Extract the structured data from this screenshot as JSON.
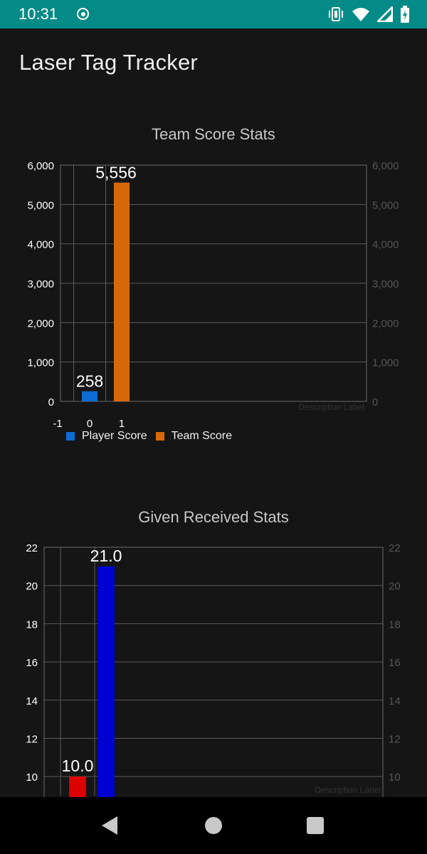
{
  "status_bar": {
    "time": "10:31",
    "icons": [
      "record-icon",
      "vibrate-icon",
      "wifi-icon",
      "signal-icon",
      "battery-charging-icon"
    ]
  },
  "app": {
    "title": "Laser Tag Tracker"
  },
  "nav_bar": {
    "buttons": [
      "back-button",
      "home-button",
      "recents-button"
    ]
  },
  "chart_data": [
    {
      "type": "bar",
      "title": "Team Score Stats",
      "description_label": "Description Label",
      "x_ticks": [
        "-1",
        "0",
        "1"
      ],
      "series": [
        {
          "name": "Player Score",
          "x": 0,
          "value": 258,
          "label": "258",
          "color": "#0c6cd4"
        },
        {
          "name": "Team Score",
          "x": 1,
          "value": 5556,
          "label": "5,556",
          "color": "#d8690a"
        }
      ],
      "ylim": [
        0,
        6000
      ],
      "y_ticks": [
        "0",
        "1,000",
        "2,000",
        "3,000",
        "4,000",
        "5,000",
        "6,000"
      ],
      "grid": true,
      "legend": "bottom-left"
    },
    {
      "type": "bar",
      "title": "Given Received Stats",
      "description_label": "Description Label",
      "series": [
        {
          "x": 0,
          "value": 10.0,
          "label": "10.0",
          "color": "#dd0000"
        },
        {
          "x": 1,
          "value": 21.0,
          "label": "21.0",
          "color": "#0000d0"
        }
      ],
      "ylim": [
        9,
        22
      ],
      "y_ticks": [
        "10",
        "12",
        "14",
        "16",
        "18",
        "20",
        "22"
      ],
      "grid": true
    }
  ]
}
